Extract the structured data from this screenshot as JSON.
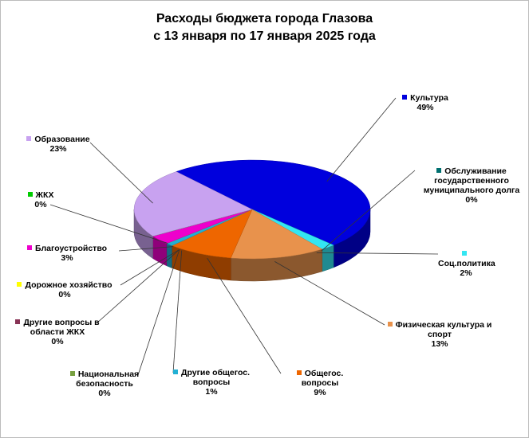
{
  "chart_data": {
    "type": "pie",
    "title": [
      "Расходы бюджета города Глазова",
      "с 13 января по 17 января 2025 года"
    ],
    "categories": [
      "Культура",
      "Обслуживание государственного муниципального долга",
      "Соц.политика",
      "Физическая культура и спорт",
      "Общегос. вопросы",
      "Другие общегос. вопросы",
      "Национальная безопасность",
      "Другие вопросы в области ЖКХ",
      "Дорожное хозяйство",
      "Благоустройство",
      "ЖКХ",
      "Образование"
    ],
    "values": [
      49,
      0,
      2,
      13,
      9,
      1,
      0,
      0,
      0,
      3,
      0,
      23
    ],
    "value_labels": [
      "49%",
      "0%",
      "2%",
      "13%",
      "9%",
      "1%",
      "0%",
      "0%",
      "0%",
      "3%",
      "0%",
      "23%"
    ],
    "colors": [
      "#0000dd",
      "#007070",
      "#33e6f2",
      "#e8924c",
      "#ee6600",
      "#22b0d4",
      "#77a040",
      "#883355",
      "#ffff00",
      "#ee00cc",
      "#00cc00",
      "#c8a2f0"
    ]
  }
}
